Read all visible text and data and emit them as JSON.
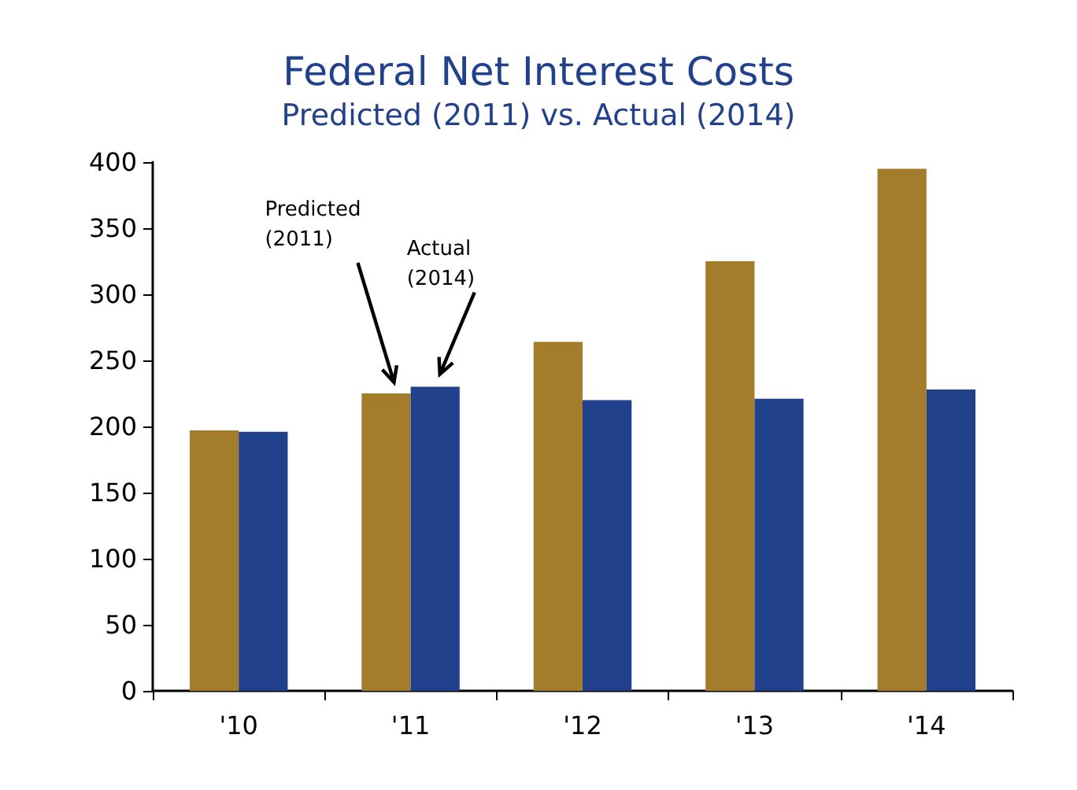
{
  "chart_data": {
    "type": "bar",
    "title": "Federal Net Interest Costs",
    "subtitle": "Predicted (2011) vs. Actual (2014)",
    "categories": [
      "'10",
      "'11",
      "'12",
      "'13",
      "'14"
    ],
    "series": [
      {
        "name": "Predicted (2011)",
        "color": "#a37c2c",
        "values": [
          197,
          225,
          264,
          325,
          395
        ]
      },
      {
        "name": "Actual (2014)",
        "color": "#22418c",
        "values": [
          196,
          230,
          220,
          221,
          228
        ]
      }
    ],
    "ylim": [
      0,
      400
    ],
    "yticks": [
      0,
      50,
      100,
      150,
      200,
      250,
      300,
      350,
      400
    ],
    "grid": false,
    "legend": false
  }
}
